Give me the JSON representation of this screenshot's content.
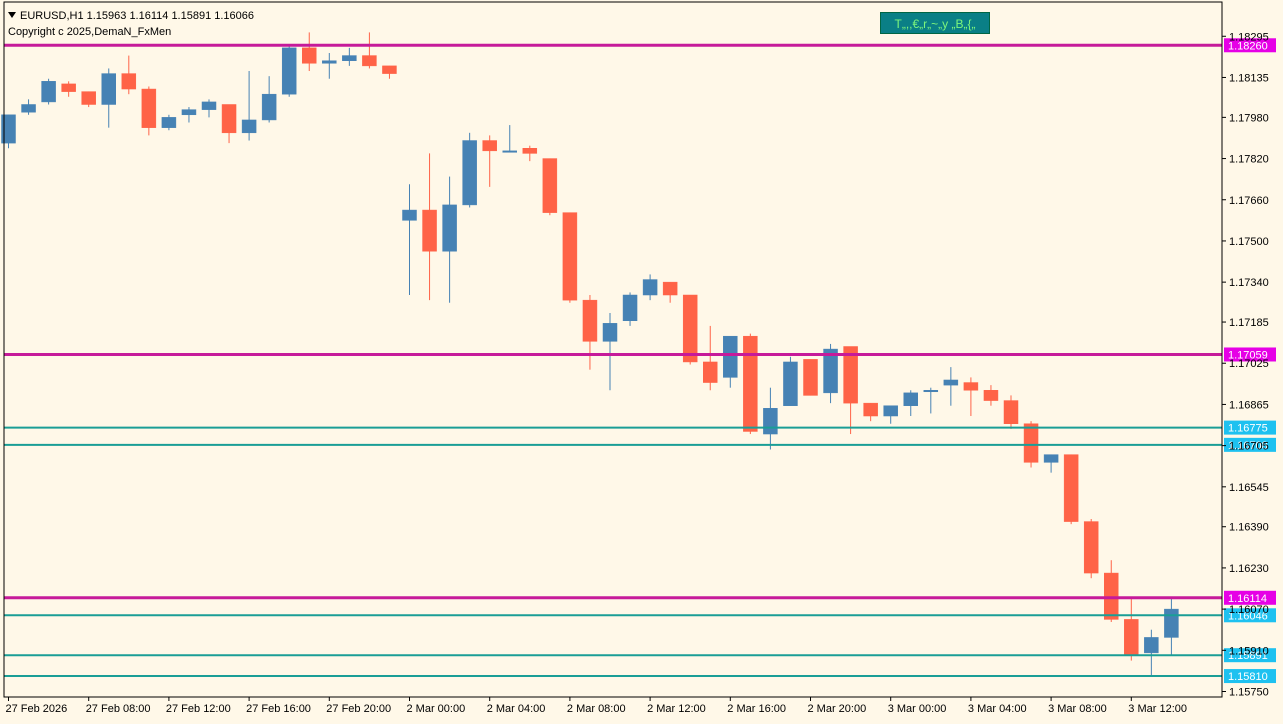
{
  "header": {
    "symbol_line": "EURUSD,H1  1.15963 1.16114 1.15891 1.16066",
    "copyright": "Copyright c 2025,DemaN_FxMen"
  },
  "indicator_button": {
    "label": "T„,,€„r„~„y „B„{„"
  },
  "colors": {
    "background": "#fff8e8",
    "bull": "#4682b4",
    "bear": "#ff6347",
    "magenta_line": "#c61a9a",
    "teal_line": "#1a9e96",
    "magenta_tag": "#e600e6",
    "cyan_tag": "#1ec1f0"
  },
  "price_axis": {
    "ticks": [
      "1.18295",
      "1.18135",
      "1.17980",
      "1.17820",
      "1.17660",
      "1.17500",
      "1.17340",
      "1.17185",
      "1.17025",
      "1.16865",
      "1.16705",
      "1.16545",
      "1.16390",
      "1.16230",
      "1.16070",
      "1.15910",
      "1.15750"
    ]
  },
  "time_axis": {
    "labels": [
      "27 Feb 2026",
      "27 Feb 08:00",
      "27 Feb 12:00",
      "27 Feb 16:00",
      "27 Feb 20:00",
      "2 Mar 00:00",
      "2 Mar 04:00",
      "2 Mar 08:00",
      "2 Mar 12:00",
      "2 Mar 16:00",
      "2 Mar 20:00",
      "3 Mar 00:00",
      "3 Mar 04:00",
      "3 Mar 08:00",
      "3 Mar 12:00"
    ]
  },
  "levels": [
    {
      "price": 1.1826,
      "label": "1.18260",
      "kind": "magenta"
    },
    {
      "price": 1.17059,
      "label": "1.17059",
      "kind": "magenta"
    },
    {
      "price": 1.16775,
      "label": "1.16775",
      "kind": "teal"
    },
    {
      "price": 1.16708,
      "label": "1.16708",
      "kind": "teal"
    },
    {
      "price": 1.16114,
      "label": "1.16114",
      "kind": "magenta"
    },
    {
      "price": 1.16046,
      "label": "1.16046",
      "kind": "teal"
    },
    {
      "price": 1.15891,
      "label": "1.15891",
      "kind": "teal"
    },
    {
      "price": 1.1581,
      "label": "1.15810",
      "kind": "teal"
    }
  ],
  "chart_data": {
    "type": "candlestick",
    "y_range": [
      1.157,
      1.1835
    ],
    "candles": [
      {
        "o": 1.1788,
        "h": 1.1799,
        "l": 1.1786,
        "c": 1.1799
      },
      {
        "o": 1.18,
        "h": 1.1805,
        "l": 1.1799,
        "c": 1.1803
      },
      {
        "o": 1.1804,
        "h": 1.1813,
        "l": 1.1803,
        "c": 1.1812
      },
      {
        "o": 1.1811,
        "h": 1.1812,
        "l": 1.1806,
        "c": 1.1808
      },
      {
        "o": 1.1808,
        "h": 1.1808,
        "l": 1.1802,
        "c": 1.1803
      },
      {
        "o": 1.1803,
        "h": 1.1817,
        "l": 1.1794,
        "c": 1.1815
      },
      {
        "o": 1.1815,
        "h": 1.1822,
        "l": 1.1807,
        "c": 1.1809
      },
      {
        "o": 1.1809,
        "h": 1.181,
        "l": 1.1791,
        "c": 1.1794
      },
      {
        "o": 1.1794,
        "h": 1.1799,
        "l": 1.1793,
        "c": 1.1798
      },
      {
        "o": 1.1799,
        "h": 1.1802,
        "l": 1.1796,
        "c": 1.1801
      },
      {
        "o": 1.1801,
        "h": 1.1805,
        "l": 1.1798,
        "c": 1.1804
      },
      {
        "o": 1.1803,
        "h": 1.1803,
        "l": 1.1788,
        "c": 1.1792
      },
      {
        "o": 1.1792,
        "h": 1.1816,
        "l": 1.1789,
        "c": 1.1797
      },
      {
        "o": 1.1797,
        "h": 1.1814,
        "l": 1.1796,
        "c": 1.1807
      },
      {
        "o": 1.1807,
        "h": 1.1826,
        "l": 1.1806,
        "c": 1.1825
      },
      {
        "o": 1.1825,
        "h": 1.1831,
        "l": 1.1816,
        "c": 1.1819
      },
      {
        "o": 1.1819,
        "h": 1.1823,
        "l": 1.1813,
        "c": 1.182
      },
      {
        "o": 1.182,
        "h": 1.1825,
        "l": 1.1818,
        "c": 1.1822
      },
      {
        "o": 1.1822,
        "h": 1.1831,
        "l": 1.1817,
        "c": 1.1818
      },
      {
        "o": 1.1818,
        "h": 1.1818,
        "l": 1.1813,
        "c": 1.1815
      },
      {
        "o": 1.1758,
        "h": 1.1772,
        "l": 1.1729,
        "c": 1.1762
      },
      {
        "o": 1.1762,
        "h": 1.1784,
        "l": 1.1727,
        "c": 1.1746
      },
      {
        "o": 1.1746,
        "h": 1.1775,
        "l": 1.1726,
        "c": 1.1764
      },
      {
        "o": 1.1764,
        "h": 1.1792,
        "l": 1.1763,
        "c": 1.1789
      },
      {
        "o": 1.1789,
        "h": 1.1791,
        "l": 1.1771,
        "c": 1.1785
      },
      {
        "o": 1.1785,
        "h": 1.1795,
        "l": 1.1785,
        "c": 1.1785
      },
      {
        "o": 1.1786,
        "h": 1.1787,
        "l": 1.1781,
        "c": 1.1784
      },
      {
        "o": 1.1782,
        "h": 1.1782,
        "l": 1.176,
        "c": 1.1761
      },
      {
        "o": 1.1761,
        "h": 1.1761,
        "l": 1.1726,
        "c": 1.1727
      },
      {
        "o": 1.1727,
        "h": 1.1729,
        "l": 1.17,
        "c": 1.1711
      },
      {
        "o": 1.1711,
        "h": 1.1722,
        "l": 1.1692,
        "c": 1.1718
      },
      {
        "o": 1.1719,
        "h": 1.173,
        "l": 1.1717,
        "c": 1.1729
      },
      {
        "o": 1.1729,
        "h": 1.1737,
        "l": 1.1727,
        "c": 1.1735
      },
      {
        "o": 1.1734,
        "h": 1.1734,
        "l": 1.1726,
        "c": 1.1729
      },
      {
        "o": 1.1729,
        "h": 1.1729,
        "l": 1.1702,
        "c": 1.1703
      },
      {
        "o": 1.1703,
        "h": 1.1717,
        "l": 1.1692,
        "c": 1.1695
      },
      {
        "o": 1.1697,
        "h": 1.1713,
        "l": 1.1693,
        "c": 1.1713
      },
      {
        "o": 1.1713,
        "h": 1.1714,
        "l": 1.1675,
        "c": 1.1676
      },
      {
        "o": 1.1675,
        "h": 1.1693,
        "l": 1.1669,
        "c": 1.1685
      },
      {
        "o": 1.1686,
        "h": 1.1705,
        "l": 1.1686,
        "c": 1.1703
      },
      {
        "o": 1.1704,
        "h": 1.1704,
        "l": 1.169,
        "c": 1.169
      },
      {
        "o": 1.1691,
        "h": 1.171,
        "l": 1.1687,
        "c": 1.1708
      },
      {
        "o": 1.1709,
        "h": 1.1709,
        "l": 1.1675,
        "c": 1.1687
      },
      {
        "o": 1.1687,
        "h": 1.1687,
        "l": 1.168,
        "c": 1.1682
      },
      {
        "o": 1.1682,
        "h": 1.1685,
        "l": 1.1679,
        "c": 1.1686
      },
      {
        "o": 1.1686,
        "h": 1.1692,
        "l": 1.1682,
        "c": 1.1691
      },
      {
        "o": 1.1692,
        "h": 1.1693,
        "l": 1.1683,
        "c": 1.1692
      },
      {
        "o": 1.1694,
        "h": 1.1701,
        "l": 1.1686,
        "c": 1.1696
      },
      {
        "o": 1.1695,
        "h": 1.1697,
        "l": 1.1682,
        "c": 1.1692
      },
      {
        "o": 1.1692,
        "h": 1.1694,
        "l": 1.1686,
        "c": 1.1688
      },
      {
        "o": 1.1688,
        "h": 1.169,
        "l": 1.1677,
        "c": 1.1679
      },
      {
        "o": 1.1679,
        "h": 1.168,
        "l": 1.1662,
        "c": 1.1664
      },
      {
        "o": 1.1664,
        "h": 1.1667,
        "l": 1.166,
        "c": 1.1667
      },
      {
        "o": 1.1667,
        "h": 1.1667,
        "l": 1.164,
        "c": 1.1641
      },
      {
        "o": 1.1641,
        "h": 1.1642,
        "l": 1.1619,
        "c": 1.1621
      },
      {
        "o": 1.1621,
        "h": 1.1626,
        "l": 1.1602,
        "c": 1.1603
      },
      {
        "o": 1.1603,
        "h": 1.1611,
        "l": 1.1587,
        "c": 1.1589
      },
      {
        "o": 1.159,
        "h": 1.1599,
        "l": 1.1581,
        "c": 1.1596
      },
      {
        "o": 1.1596,
        "h": 1.1611,
        "l": 1.1589,
        "c": 1.1607
      }
    ]
  }
}
